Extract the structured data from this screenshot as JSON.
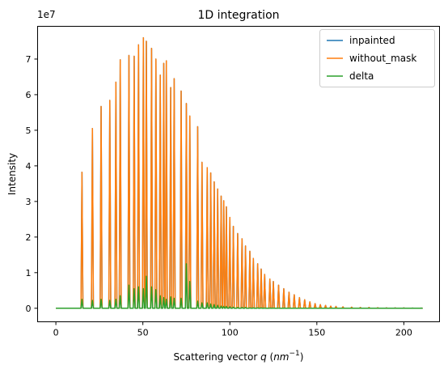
{
  "chart_data": {
    "type": "line",
    "title": "1D integration",
    "xlabel": {
      "prefix": "Scattering vector ",
      "var": "q",
      "unit_base": "nm",
      "unit_exp": "−1"
    },
    "ylabel": "Intensity",
    "y_offset_text": "1e7",
    "xlim": [
      -10.5,
      220.5
    ],
    "ylim": [
      -0.38,
      7.92
    ],
    "y_unit_scale": 10000000,
    "xticks": [
      0,
      50,
      100,
      150,
      200
    ],
    "yticks": [
      0,
      1,
      2,
      3,
      4,
      5,
      6,
      7
    ],
    "grid": false,
    "legend_position": "top-right",
    "series": [
      {
        "name": "inpainted",
        "color": "#1f77b4",
        "note_visible": "hidden beneath without_mask",
        "peaks": [
          [
            15,
            3.82
          ],
          [
            21,
            5.05
          ],
          [
            26,
            5.67
          ],
          [
            31,
            5.84
          ],
          [
            34.5,
            6.35
          ],
          [
            37,
            6.98
          ],
          [
            42,
            7.1
          ],
          [
            45,
            7.08
          ],
          [
            47.5,
            7.4
          ],
          [
            50.3,
            7.6
          ],
          [
            52,
            7.5
          ],
          [
            55,
            7.3
          ],
          [
            57.5,
            7.0
          ],
          [
            60,
            6.55
          ],
          [
            62,
            6.88
          ],
          [
            63.5,
            6.95
          ],
          [
            66,
            6.2
          ],
          [
            68,
            6.45
          ],
          [
            72,
            6.1
          ],
          [
            75,
            5.75
          ],
          [
            77,
            5.4
          ],
          [
            81.5,
            5.1
          ],
          [
            84,
            4.1
          ],
          [
            87,
            3.95
          ],
          [
            89,
            3.8
          ],
          [
            91,
            3.55
          ],
          [
            93,
            3.35
          ],
          [
            95,
            3.15
          ],
          [
            96.5,
            3.02
          ],
          [
            98,
            2.85
          ],
          [
            100,
            2.55
          ],
          [
            102,
            2.3
          ],
          [
            104.5,
            2.1
          ],
          [
            107,
            1.95
          ],
          [
            109,
            1.75
          ],
          [
            111.5,
            1.6
          ],
          [
            113.5,
            1.4
          ],
          [
            116,
            1.25
          ],
          [
            118,
            1.1
          ],
          [
            120,
            0.95
          ],
          [
            123,
            0.82
          ],
          [
            125,
            0.75
          ],
          [
            128,
            0.65
          ],
          [
            131,
            0.55
          ],
          [
            134,
            0.45
          ],
          [
            137,
            0.38
          ],
          [
            140,
            0.3
          ],
          [
            143,
            0.24
          ],
          [
            146,
            0.18
          ],
          [
            149,
            0.13
          ],
          [
            152,
            0.1
          ],
          [
            155,
            0.08
          ],
          [
            158,
            0.06
          ],
          [
            161,
            0.05
          ],
          [
            165,
            0.04
          ],
          [
            170,
            0.03
          ],
          [
            175,
            0.02
          ],
          [
            180,
            0.02
          ],
          [
            185,
            0.015
          ],
          [
            190,
            0.01
          ],
          [
            195,
            0.01
          ],
          [
            200,
            0.01
          ],
          [
            205,
            0.005
          ],
          [
            210,
            0.005
          ]
        ]
      },
      {
        "name": "without_mask",
        "color": "#ff7f0e",
        "peaks": [
          [
            15,
            3.82
          ],
          [
            21,
            5.05
          ],
          [
            26,
            5.67
          ],
          [
            31,
            5.84
          ],
          [
            34.5,
            6.35
          ],
          [
            37,
            6.98
          ],
          [
            42,
            7.1
          ],
          [
            45,
            7.08
          ],
          [
            47.5,
            7.4
          ],
          [
            50.3,
            7.6
          ],
          [
            52,
            7.5
          ],
          [
            55,
            7.3
          ],
          [
            57.5,
            7.0
          ],
          [
            60,
            6.55
          ],
          [
            62,
            6.88
          ],
          [
            63.5,
            6.95
          ],
          [
            66,
            6.2
          ],
          [
            68,
            6.45
          ],
          [
            72,
            6.1
          ],
          [
            75,
            5.75
          ],
          [
            77,
            5.4
          ],
          [
            81.5,
            5.1
          ],
          [
            84,
            4.1
          ],
          [
            87,
            3.95
          ],
          [
            89,
            3.8
          ],
          [
            91,
            3.55
          ],
          [
            93,
            3.35
          ],
          [
            95,
            3.15
          ],
          [
            96.5,
            3.02
          ],
          [
            98,
            2.85
          ],
          [
            100,
            2.55
          ],
          [
            102,
            2.3
          ],
          [
            104.5,
            2.1
          ],
          [
            107,
            1.95
          ],
          [
            109,
            1.75
          ],
          [
            111.5,
            1.6
          ],
          [
            113.5,
            1.4
          ],
          [
            116,
            1.25
          ],
          [
            118,
            1.1
          ],
          [
            120,
            0.95
          ],
          [
            123,
            0.82
          ],
          [
            125,
            0.75
          ],
          [
            128,
            0.65
          ],
          [
            131,
            0.55
          ],
          [
            134,
            0.45
          ],
          [
            137,
            0.38
          ],
          [
            140,
            0.3
          ],
          [
            143,
            0.24
          ],
          [
            146,
            0.18
          ],
          [
            149,
            0.13
          ],
          [
            152,
            0.1
          ],
          [
            155,
            0.08
          ],
          [
            158,
            0.06
          ],
          [
            161,
            0.05
          ],
          [
            165,
            0.04
          ],
          [
            170,
            0.03
          ],
          [
            175,
            0.02
          ],
          [
            180,
            0.02
          ],
          [
            185,
            0.015
          ],
          [
            190,
            0.01
          ],
          [
            195,
            0.01
          ],
          [
            200,
            0.01
          ],
          [
            205,
            0.005
          ],
          [
            210,
            0.005
          ]
        ]
      },
      {
        "name": "delta",
        "color": "#2ca02c",
        "peaks": [
          [
            15,
            0.25
          ],
          [
            21,
            0.22
          ],
          [
            26,
            0.25
          ],
          [
            31,
            0.22
          ],
          [
            34.5,
            0.25
          ],
          [
            37,
            0.35
          ],
          [
            42,
            0.65
          ],
          [
            45,
            0.55
          ],
          [
            47.5,
            0.6
          ],
          [
            50.3,
            0.55
          ],
          [
            52,
            0.9
          ],
          [
            55,
            0.6
          ],
          [
            57.5,
            0.52
          ],
          [
            60,
            0.35
          ],
          [
            62,
            0.3
          ],
          [
            63.5,
            0.25
          ],
          [
            66,
            0.32
          ],
          [
            68,
            0.28
          ],
          [
            72,
            0.28
          ],
          [
            75,
            1.25
          ],
          [
            77,
            0.75
          ],
          [
            81.5,
            0.2
          ],
          [
            84,
            0.15
          ],
          [
            87,
            0.15
          ],
          [
            89,
            0.12
          ],
          [
            91,
            0.1
          ],
          [
            93,
            0.08
          ],
          [
            95,
            0.06
          ],
          [
            96.5,
            0.05
          ],
          [
            98,
            0.05
          ],
          [
            100,
            0.04
          ],
          [
            102,
            0.03
          ],
          [
            104.5,
            0.02
          ],
          [
            107,
            0.02
          ],
          [
            109,
            0.02
          ],
          [
            111.5,
            0.01
          ],
          [
            113.5,
            0.01
          ],
          [
            116,
            0.01
          ],
          [
            118,
            0.01
          ],
          [
            120,
            0.005
          ],
          [
            123,
            0.005
          ],
          [
            125,
            0.005
          ],
          [
            128,
            0.005
          ],
          [
            131,
            0.004
          ],
          [
            134,
            0.003
          ],
          [
            137,
            0.002
          ],
          [
            140,
            0.002
          ],
          [
            143,
            0.002
          ],
          [
            146,
            0.001
          ],
          [
            149,
            0.001
          ],
          [
            152,
            0.001
          ],
          [
            155,
            0.001
          ],
          [
            158,
            0.001
          ],
          [
            161,
            0.001
          ],
          [
            165,
            0.001
          ],
          [
            170,
            0.001
          ],
          [
            175,
            0.001
          ],
          [
            180,
            0.001
          ],
          [
            185,
            0.0005
          ],
          [
            190,
            0.0005
          ],
          [
            195,
            0.0005
          ],
          [
            200,
            0.0005
          ],
          [
            205,
            0.0002
          ],
          [
            210,
            0.0002
          ]
        ]
      }
    ],
    "x_range_data": [
      0,
      210
    ]
  }
}
